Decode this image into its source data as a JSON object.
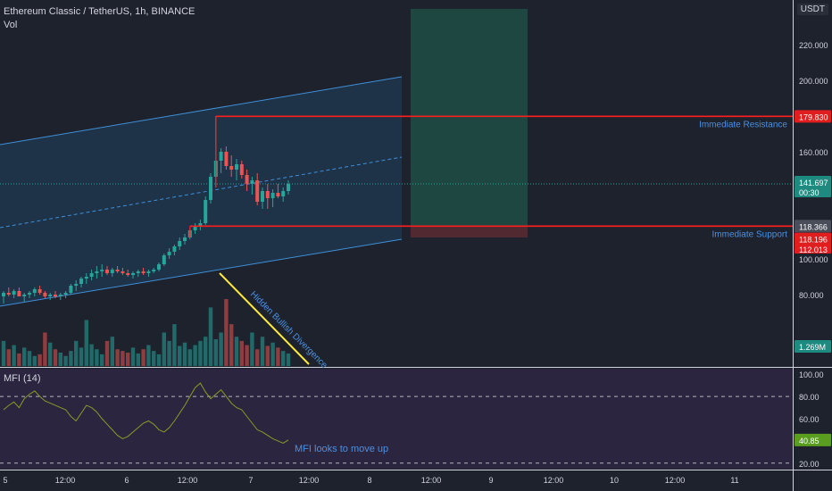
{
  "header": {
    "title": "Ethereum Classic / TetherUS, 1h, BINANCE",
    "vol_label": "Vol",
    "currency_button": "USDT"
  },
  "mfi_panel": {
    "label": "MFI (14)"
  },
  "colors": {
    "background": "#1e222d",
    "channel_fill": "#1f3a52",
    "channel_line": "#3f8fd8",
    "up": "#26a69a",
    "down": "#ef5350",
    "resistance_line": "#ff1e1e",
    "mfi_line": "#8a9a24",
    "mfi_bg": "#2c2540",
    "target_zone": "#1f4e47",
    "stop_zone": "#5a2c33",
    "divergence_line": "#ffeb3b",
    "annotation_text": "#4a90e2"
  },
  "chart_data": [
    {
      "type": "candlestick",
      "name": "price",
      "yticks": [
        80,
        100,
        120,
        140,
        160,
        180,
        200,
        220
      ],
      "ytick_labels": [
        "80.000",
        "100.000",
        "120.000",
        "140.000",
        "160.000",
        "180.000",
        "200.000",
        "220.000"
      ],
      "xtick_labels": [
        "5",
        "12:00",
        "6",
        "12:00",
        "7",
        "12:00",
        "8",
        "12:00",
        "9",
        "12:00",
        "10",
        "12:00",
        "11"
      ],
      "ylim": [
        40,
        245
      ],
      "candles": [
        [
          79,
          82,
          75,
          81
        ],
        [
          81,
          84,
          79,
          80
        ],
        [
          80,
          83,
          78,
          82
        ],
        [
          82,
          84,
          80,
          79
        ],
        [
          79,
          81,
          76,
          80
        ],
        [
          80,
          82,
          78,
          81
        ],
        [
          81,
          84,
          79,
          83
        ],
        [
          83,
          85,
          80,
          81
        ],
        [
          81,
          82,
          78,
          79
        ],
        [
          79,
          81,
          77,
          80
        ],
        [
          80,
          82,
          78,
          79
        ],
        [
          79,
          81,
          77,
          80
        ],
        [
          80,
          82,
          78,
          81
        ],
        [
          81,
          86,
          80,
          85
        ],
        [
          85,
          88,
          82,
          86
        ],
        [
          86,
          90,
          84,
          89
        ],
        [
          89,
          92,
          86,
          90
        ],
        [
          90,
          94,
          88,
          92
        ],
        [
          92,
          96,
          89,
          93
        ],
        [
          93,
          97,
          90,
          94
        ],
        [
          94,
          96,
          91,
          92
        ],
        [
          92,
          95,
          90,
          94
        ],
        [
          94,
          96,
          92,
          93
        ],
        [
          93,
          95,
          91,
          92
        ],
        [
          92,
          94,
          90,
          91
        ],
        [
          91,
          93,
          89,
          92
        ],
        [
          92,
          94,
          90,
          93
        ],
        [
          93,
          95,
          91,
          92
        ],
        [
          92,
          94,
          90,
          93
        ],
        [
          93,
          95,
          92,
          94
        ],
        [
          94,
          98,
          93,
          97
        ],
        [
          97,
          103,
          96,
          102
        ],
        [
          102,
          106,
          100,
          104
        ],
        [
          104,
          108,
          102,
          107
        ],
        [
          107,
          112,
          105,
          110
        ],
        [
          110,
          114,
          108,
          112
        ],
        [
          112,
          117,
          111,
          116
        ],
        [
          116,
          120,
          114,
          118
        ],
        [
          118,
          122,
          116,
          120
        ],
        [
          120,
          135,
          119,
          133
        ],
        [
          133,
          148,
          131,
          146
        ],
        [
          146,
          180,
          140,
          155
        ],
        [
          155,
          162,
          148,
          160
        ],
        [
          160,
          163,
          150,
          152
        ],
        [
          152,
          158,
          146,
          150
        ],
        [
          150,
          156,
          144,
          153
        ],
        [
          153,
          155,
          145,
          147
        ],
        [
          147,
          150,
          138,
          142
        ],
        [
          142,
          146,
          136,
          144
        ],
        [
          144,
          148,
          130,
          132
        ],
        [
          132,
          140,
          128,
          138
        ],
        [
          138,
          142,
          128,
          134
        ],
        [
          134,
          139,
          129,
          137
        ],
        [
          137,
          142,
          134,
          135
        ],
        [
          135,
          140,
          132,
          138
        ],
        [
          138,
          144,
          136,
          142
        ]
      ],
      "value_labels": [
        "179.830",
        "141.697",
        "00:30",
        "118.366",
        "118.196",
        "112.013",
        "1.269M"
      ],
      "annotations": [
        "Immediate Resistance",
        "Immediate Support",
        "Hidden Bullish Divergence"
      ],
      "levels": {
        "resistance": 179.83,
        "support": 118.366,
        "target_top": 240,
        "stop_bottom": 112.013
      }
    },
    {
      "type": "bar",
      "name": "volume",
      "values": [
        30,
        20,
        25,
        15,
        22,
        18,
        12,
        14,
        40,
        28,
        20,
        16,
        12,
        18,
        30,
        22,
        55,
        26,
        20,
        14,
        30,
        35,
        20,
        18,
        16,
        22,
        15,
        20,
        25,
        18,
        14,
        40,
        30,
        50,
        24,
        28,
        20,
        25,
        30,
        35,
        70,
        32,
        40,
        80,
        50,
        35,
        30,
        25,
        40,
        20,
        35,
        24,
        28,
        22,
        18,
        15
      ]
    },
    {
      "type": "line",
      "name": "MFI (14)",
      "yticks": [
        20,
        40,
        60,
        80,
        100
      ],
      "ytick_labels": [
        "20.00",
        "40.00",
        "60.00",
        "80.00",
        "100.00"
      ],
      "ylim": [
        15,
        105
      ],
      "values": [
        68,
        72,
        75,
        70,
        78,
        82,
        85,
        80,
        76,
        74,
        72,
        70,
        68,
        62,
        58,
        65,
        72,
        70,
        66,
        60,
        55,
        50,
        45,
        42,
        44,
        48,
        52,
        56,
        58,
        55,
        50,
        48,
        52,
        58,
        65,
        72,
        80,
        88,
        92,
        84,
        78,
        82,
        86,
        80,
        74,
        70,
        68,
        62,
        56,
        50,
        48,
        45,
        42,
        40,
        38,
        40.85
      ],
      "last_value_label": "40.85",
      "annotation": "MFI looks to move up"
    }
  ]
}
